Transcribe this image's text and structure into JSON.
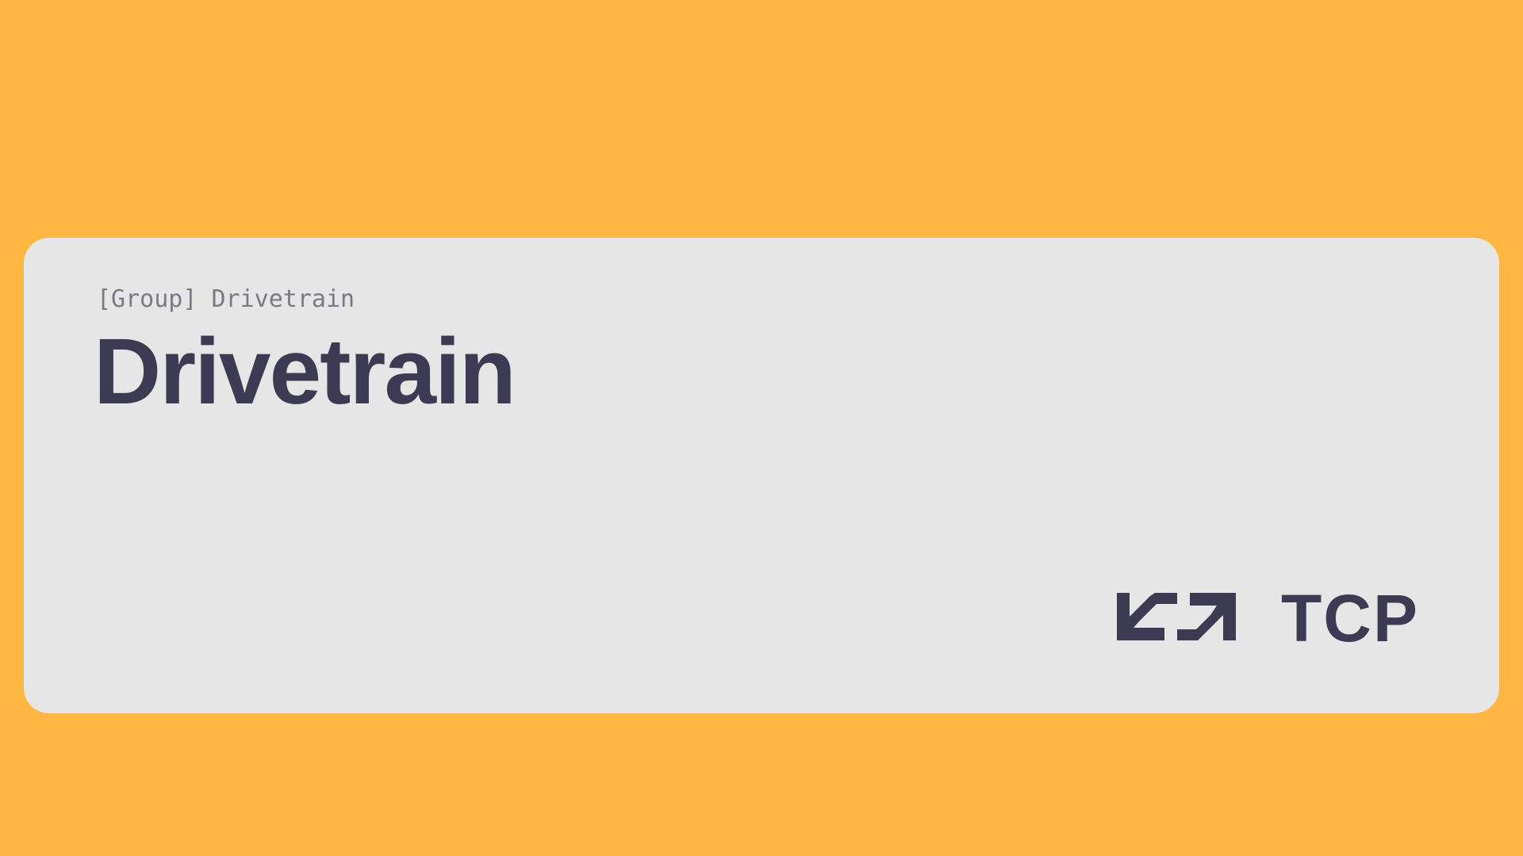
{
  "card": {
    "breadcrumb": "[Group] Drivetrain",
    "title": "Drivetrain"
  },
  "logo": {
    "icon": "double-arrow-logo-icon",
    "text": "TCP"
  },
  "colors": {
    "background": "#FFB743",
    "card": "#E6E6E6",
    "text_dark": "#3D3A54",
    "text_muted": "#7A7A85"
  }
}
